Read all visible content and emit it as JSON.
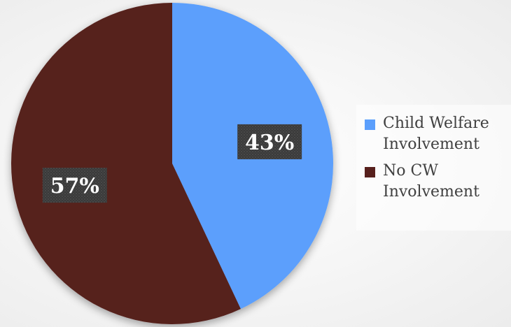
{
  "chart_data": {
    "type": "pie",
    "title": "",
    "slices": [
      {
        "label": "Child Welfare Involvement",
        "value": 43,
        "display": "43%",
        "color": "#5b9ffc"
      },
      {
        "label": "No CW Involvement",
        "value": 57,
        "display": "57%",
        "color": "#57201d"
      }
    ],
    "legend_placement": "right",
    "data_label_style": "dark-box"
  },
  "legend": [
    {
      "text": "Child Welfare Involvement",
      "color": "#5b9ffc"
    },
    {
      "text": "No CW Involvement",
      "color": "#57201d"
    }
  ]
}
